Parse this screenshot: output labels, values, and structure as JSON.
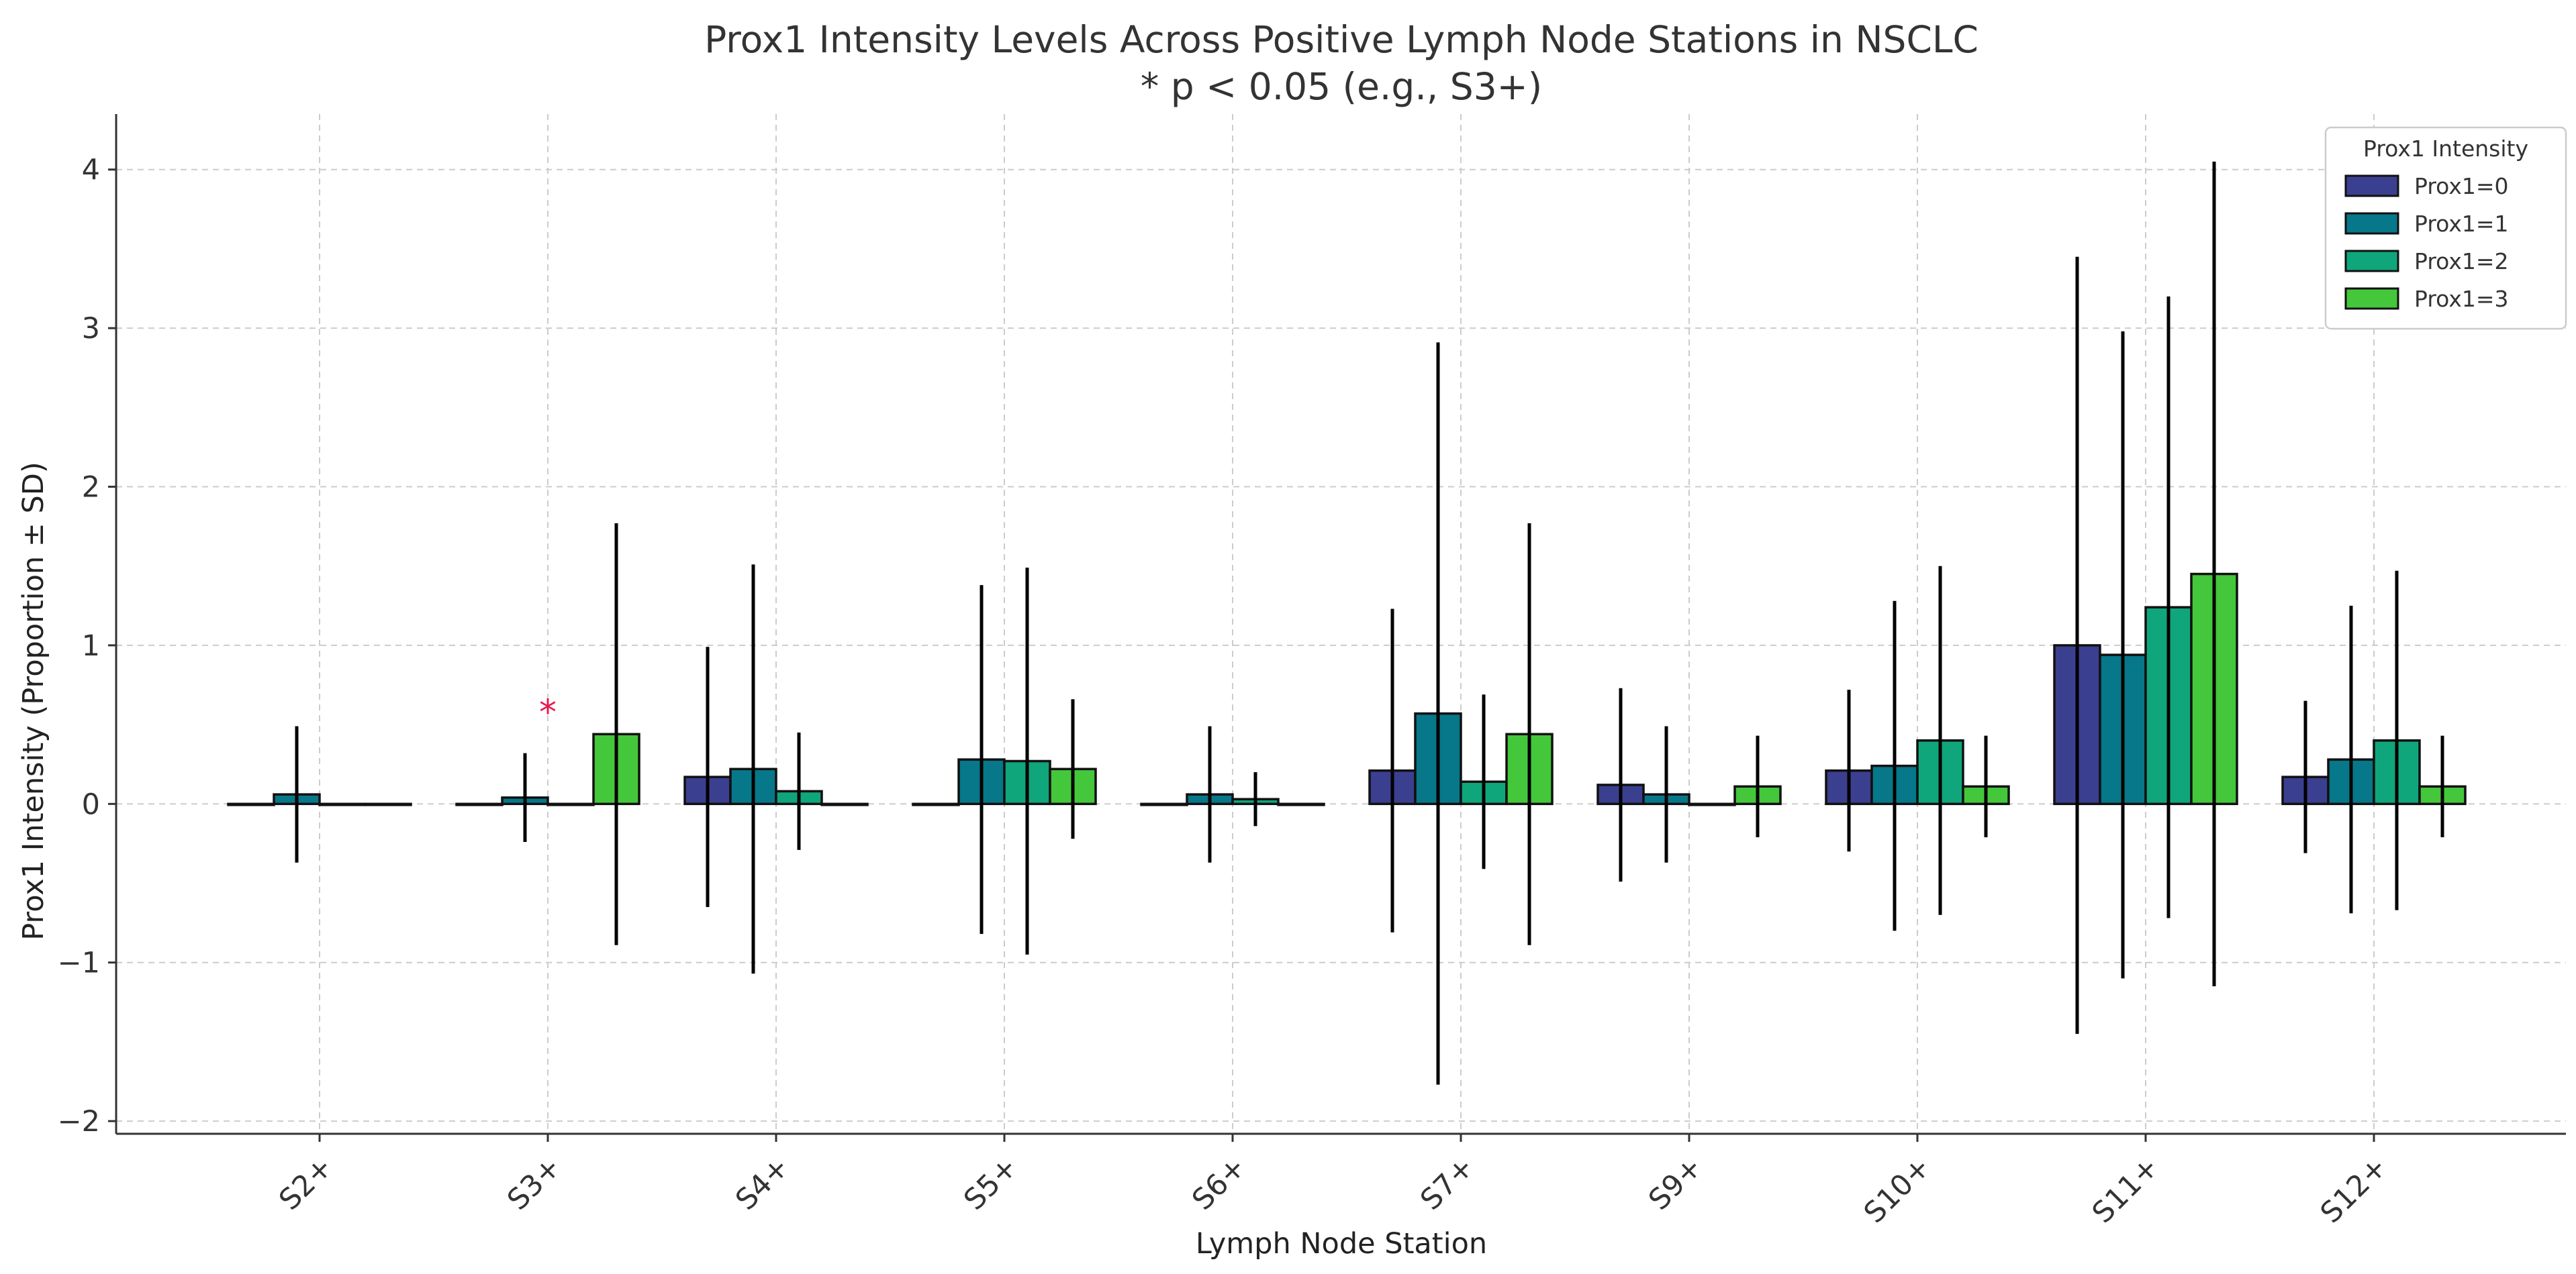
{
  "chart_data": {
    "type": "bar",
    "title": "Prox1 Intensity Levels Across Positive Lymph Node Stations in NSCLC",
    "subtitle": "* p < 0.05 (e.g., S3+)",
    "xlabel": "Lymph Node Station",
    "ylabel": "Prox1 Intensity (Proportion ± SD)",
    "ylim": [
      -2.08,
      4.35
    ],
    "yticks": [
      -2,
      -1,
      0,
      1,
      2,
      3,
      4
    ],
    "ytick_labels": [
      "−2",
      "−1",
      "0",
      "1",
      "2",
      "3",
      "4"
    ],
    "categories": [
      "S2+",
      "S3+",
      "S4+",
      "S5+",
      "S6+",
      "S7+",
      "S9+",
      "S10+",
      "S11+",
      "S12+"
    ],
    "grid": true,
    "legend": {
      "title": "Prox1 Intensity",
      "placement": "top-right"
    },
    "series": [
      {
        "name": "Prox1=0",
        "color": "#3b3f8f",
        "values": [
          0,
          0,
          0.17,
          0,
          0,
          0.21,
          0.12,
          0.21,
          1.0,
          0.17
        ],
        "sd": [
          0,
          0,
          0.82,
          0,
          0,
          1.02,
          0.61,
          0.51,
          2.45,
          0.48
        ]
      },
      {
        "name": "Prox1=1",
        "color": "#07778a",
        "values": [
          0.06,
          0.04,
          0.22,
          0.28,
          0.06,
          0.57,
          0.06,
          0.24,
          0.94,
          0.28
        ],
        "sd": [
          0.43,
          0.28,
          1.29,
          1.1,
          0.43,
          2.34,
          0.43,
          1.04,
          2.04,
          0.97
        ]
      },
      {
        "name": "Prox1=2",
        "color": "#10a67c",
        "values": [
          0,
          0,
          0.08,
          0.27,
          0.03,
          0.14,
          0,
          0.4,
          1.24,
          0.4
        ],
        "sd": [
          0,
          0,
          0.37,
          1.22,
          0.17,
          0.55,
          0,
          1.1,
          1.96,
          1.07
        ]
      },
      {
        "name": "Prox1=3",
        "color": "#44c73a",
        "values": [
          0,
          0.44,
          0,
          0.22,
          0,
          0.44,
          0.11,
          0.11,
          1.45,
          0.11
        ],
        "sd": [
          0,
          1.33,
          0,
          0.44,
          0,
          1.33,
          0.32,
          0.32,
          2.6,
          0.32
        ]
      }
    ],
    "annotations": [
      {
        "text": "*",
        "category": "S3+",
        "value": 0.63,
        "color": "#e8174c"
      }
    ]
  }
}
